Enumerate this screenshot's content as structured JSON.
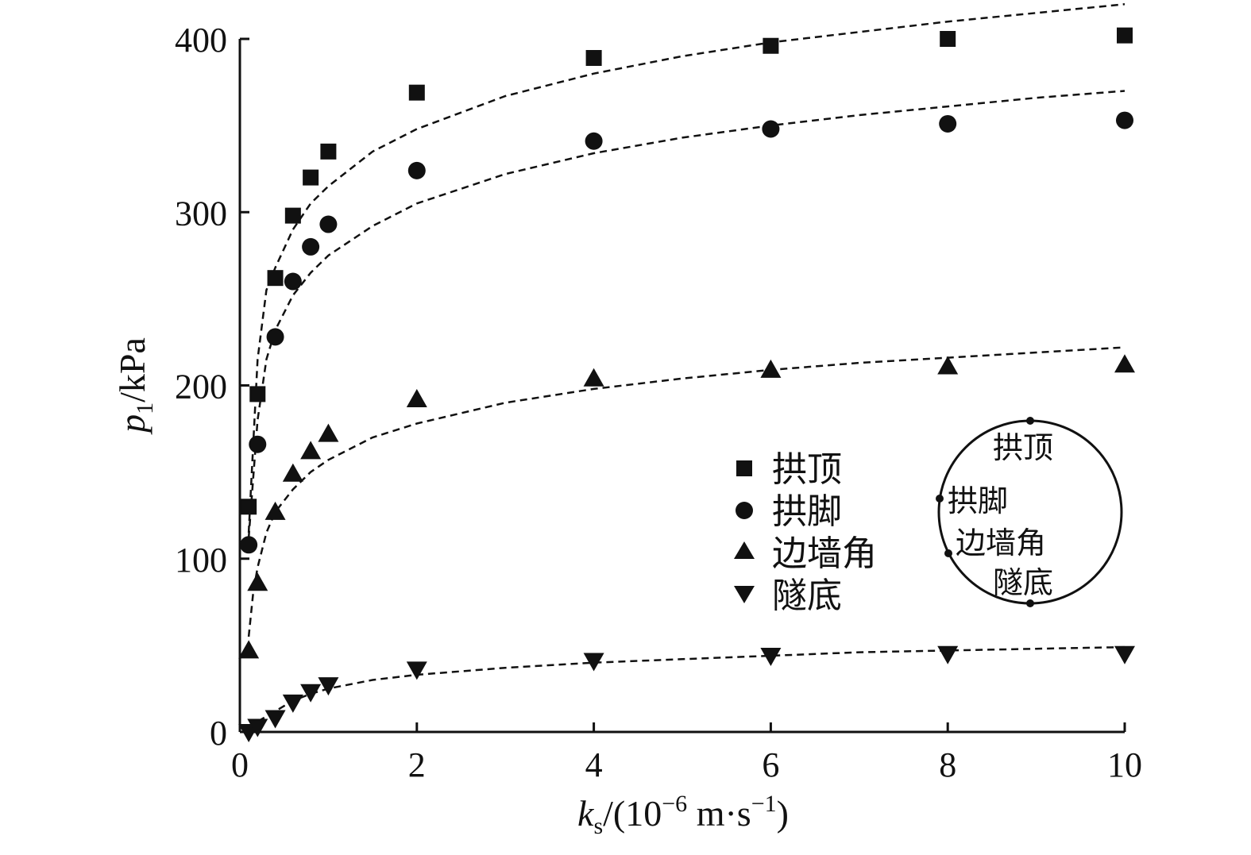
{
  "chart_data": {
    "type": "scatter",
    "x_label": {
      "symbol": "k",
      "subscript": "s",
      "rest": "/(10",
      "exp1": "−6",
      "unit": " m·s",
      "exp2": "−1",
      "close": ")"
    },
    "y_label": {
      "symbol": "p",
      "subscript": "1",
      "rest": "/kPa"
    },
    "xlim": [
      0,
      10
    ],
    "ylim": [
      0,
      400
    ],
    "x_ticks": [
      0,
      2,
      4,
      6,
      8,
      10
    ],
    "y_ticks": [
      0,
      100,
      200,
      300,
      400
    ],
    "grid": false,
    "legend_position": "center-right",
    "series": [
      {
        "name": "拱顶",
        "marker": "square",
        "x": [
          0.1,
          0.2,
          0.4,
          0.6,
          0.8,
          1.0,
          2,
          4,
          6,
          8,
          10
        ],
        "y": [
          130,
          195,
          262,
          298,
          320,
          335,
          369,
          389,
          396,
          400,
          402
        ],
        "fit_x": [
          0.1,
          0.2,
          0.3,
          0.4,
          0.6,
          0.8,
          1.0,
          1.5,
          2,
          3,
          4,
          5,
          6,
          7,
          8,
          9,
          10
        ],
        "fit_y": [
          115,
          215,
          255,
          268,
          290,
          305,
          315,
          335,
          348,
          367,
          380,
          390,
          398,
          404,
          410,
          415,
          420
        ]
      },
      {
        "name": "拱脚",
        "marker": "circle",
        "x": [
          0.1,
          0.2,
          0.4,
          0.6,
          0.8,
          1.0,
          2,
          4,
          6,
          8,
          10
        ],
        "y": [
          108,
          166,
          228,
          260,
          280,
          293,
          324,
          341,
          348,
          351,
          353
        ],
        "fit_x": [
          0.1,
          0.2,
          0.3,
          0.4,
          0.6,
          0.8,
          1.0,
          1.5,
          2,
          3,
          4,
          5,
          6,
          7,
          8,
          9,
          10
        ],
        "fit_y": [
          112,
          180,
          215,
          232,
          252,
          265,
          275,
          292,
          305,
          322,
          334,
          343,
          350,
          356,
          361,
          366,
          370
        ]
      },
      {
        "name": "边墙角",
        "marker": "triangle-up",
        "x": [
          0.1,
          0.2,
          0.4,
          0.6,
          0.8,
          1.0,
          2,
          4,
          6,
          8,
          10
        ],
        "y": [
          47,
          86,
          127,
          149,
          162,
          172,
          192,
          204,
          209,
          211,
          212
        ],
        "fit_x": [
          0.1,
          0.15,
          0.2,
          0.3,
          0.4,
          0.6,
          0.8,
          1.0,
          1.5,
          2,
          3,
          4,
          5,
          6,
          7,
          8,
          9,
          10
        ],
        "fit_y": [
          55,
          80,
          95,
          115,
          127,
          140,
          150,
          157,
          170,
          178,
          190,
          198,
          204,
          209,
          213,
          216,
          219,
          222
        ]
      },
      {
        "name": "隧底",
        "marker": "triangle-down",
        "x": [
          0.1,
          0.2,
          0.4,
          0.6,
          0.8,
          1.0,
          2,
          4,
          6,
          8,
          10
        ],
        "y": [
          0,
          3,
          8,
          17,
          23,
          27,
          36,
          41,
          44,
          45,
          45
        ],
        "fit_x": [
          0.1,
          0.2,
          0.4,
          0.6,
          0.8,
          1.0,
          1.5,
          2,
          3,
          4,
          5,
          6,
          7,
          8,
          9,
          10
        ],
        "fit_y": [
          2,
          6,
          12,
          18,
          22,
          25,
          30,
          33,
          37,
          40,
          42,
          44,
          46,
          47,
          48,
          49
        ]
      }
    ],
    "inset_labels": [
      "拱顶",
      "拱脚",
      "边墙角",
      "隧底"
    ]
  }
}
